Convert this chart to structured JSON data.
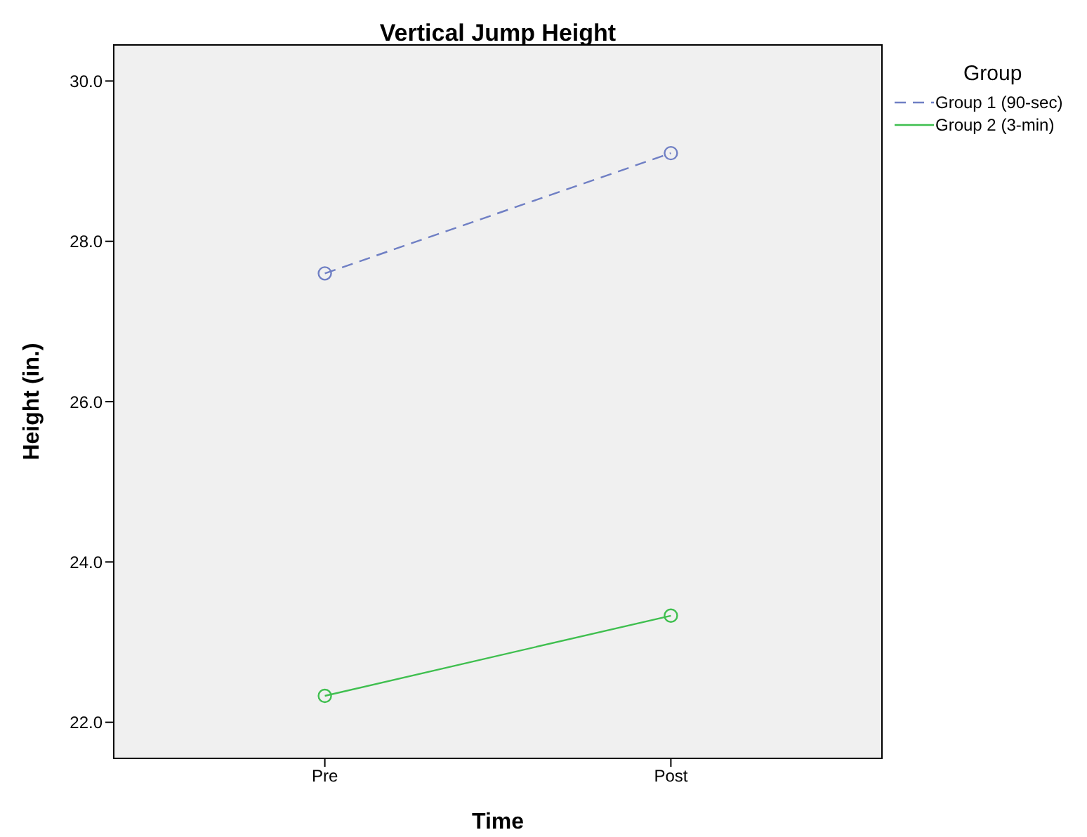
{
  "chart_data": {
    "type": "line",
    "title": "Vertical Jump Height",
    "xlabel": "Time",
    "ylabel": "Height (in.)",
    "legend_title": "Group",
    "categories": [
      "Pre",
      "Post"
    ],
    "series": [
      {
        "name": "Group 1 (90-sec)",
        "color": "#6f7fc4",
        "values": [
          27.6,
          29.1
        ],
        "line_style": "dashed"
      },
      {
        "name": "Group 2 (3-min)",
        "color": "#3fbf4f",
        "values": [
          22.33,
          23.33
        ],
        "line_style": "solid"
      }
    ],
    "ylim": [
      21.55,
      30.45
    ],
    "yticks": [
      {
        "value": 22,
        "label": "22.0"
      },
      {
        "value": 24,
        "label": "24.0"
      },
      {
        "value": 26,
        "label": "26.0"
      },
      {
        "value": 28,
        "label": "28.0"
      },
      {
        "value": 30,
        "label": "30.0"
      }
    ],
    "grid": false,
    "legend": "top right",
    "marker": "circle"
  }
}
